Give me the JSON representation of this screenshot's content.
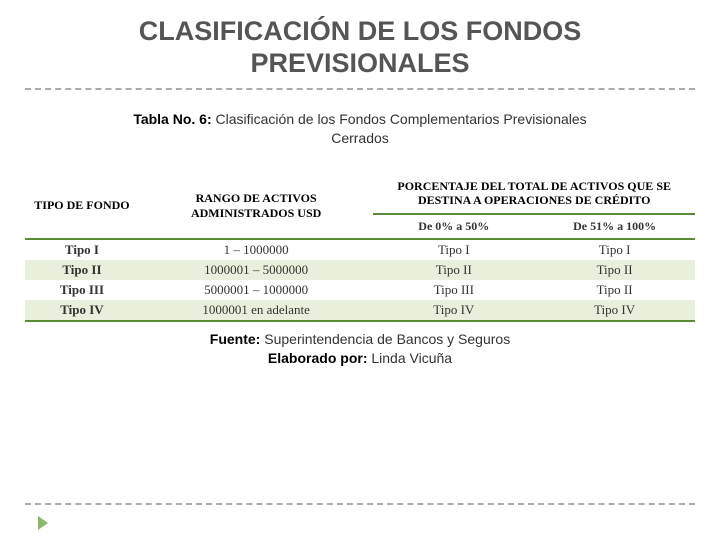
{
  "title": "CLASIFICACIÓN DE LOS FONDOS PREVISIONALES",
  "caption_bold": "Tabla No. 6:",
  "caption_rest": " Clasificación de los Fondos Complementarios Previsionales Cerrados",
  "headers": {
    "col1": "TIPO DE FONDO",
    "col2": "RANGO DE ACTIVOS ADMINISTRADOS USD",
    "col3": "PORCENTAJE DEL TOTAL DE ACTIVOS QUE SE DESTINA A OPERACIONES DE CRÉDITO"
  },
  "subheaders": {
    "rangeA": "De 0% a 50%",
    "rangeB": "De 51% a 100%"
  },
  "rows": [
    {
      "tipo": "Tipo I",
      "rango": "1 – 1000000",
      "a": "Tipo I",
      "b": "Tipo I"
    },
    {
      "tipo": "Tipo II",
      "rango": "1000001 – 5000000",
      "a": "Tipo II",
      "b": "Tipo II"
    },
    {
      "tipo": "Tipo III",
      "rango": "5000001 – 1000000",
      "a": "Tipo III",
      "b": "Tipo II"
    },
    {
      "tipo": "Tipo IV",
      "rango": "1000001 en adelante",
      "a": "Tipo IV",
      "b": "Tipo IV"
    }
  ],
  "source": {
    "fuente_label": "Fuente:",
    "fuente_value": " Superintendencia de Bancos y Seguros",
    "elaborado_label": "Elaborado por:",
    "elaborado_value": " Linda Vicuña"
  },
  "colors": {
    "band": "#e8f0dc",
    "borderGreen": "#5a8a3a",
    "titleColor": "#555555",
    "dashColor": "#aaaaaa"
  }
}
